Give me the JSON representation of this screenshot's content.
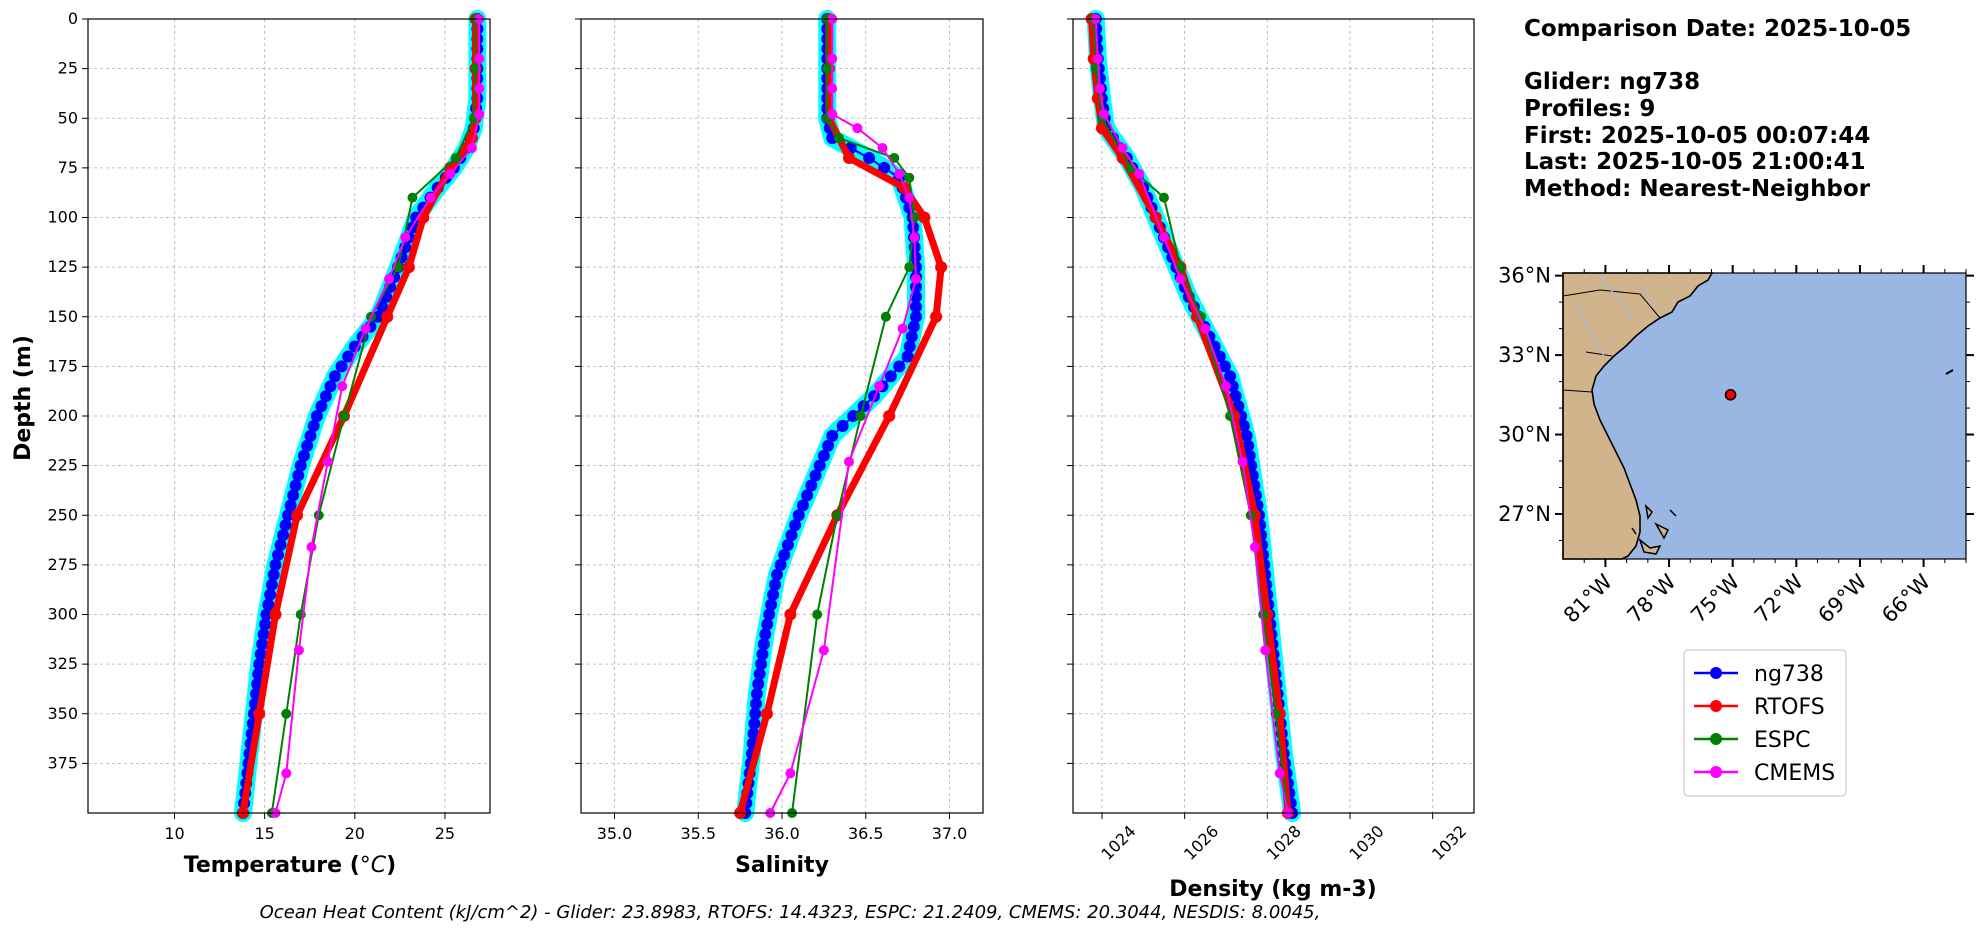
{
  "info": {
    "comparison_date": "Comparison Date: 2025-10-05",
    "glider": "Glider: ng738",
    "profiles": "Profiles: 9",
    "first": "First: 2025-10-05 00:07:44",
    "last": "Last: 2025-10-05 21:00:41",
    "method": "Method: Nearest-Neighbor"
  },
  "footer": "Ocean Heat Content (kJ/cm^2) - Glider: 23.8983,  RTOFS: 14.4323,  ESPC: 21.2409,  CMEMS: 20.3044,  NESDIS: 8.0045,",
  "colors": {
    "ng738": "#0000ff",
    "RTOFS": "#ff0000",
    "ESPC": "#008000",
    "CMEMS": "#ff00ff",
    "cyan": "#00ffff",
    "land": "#d2b48c",
    "ocean": "#9ab6e2"
  },
  "chart_data": [
    {
      "type": "line",
      "ylabel": "Depth (m)",
      "xlabel": "Temperature (°C)",
      "xlim": [
        5.2,
        27.5
      ],
      "ylim": [
        400,
        0
      ],
      "xticks": [
        "10",
        "15",
        "20",
        "25"
      ],
      "xtick_values": [
        10,
        15,
        20,
        25
      ],
      "yticks": [
        "0",
        "25",
        "50",
        "75",
        "100",
        "125",
        "150",
        "175",
        "200",
        "225",
        "250",
        "275",
        "300",
        "325",
        "350",
        "375"
      ],
      "ytick_values": [
        0,
        25,
        50,
        75,
        100,
        125,
        150,
        175,
        200,
        225,
        250,
        275,
        300,
        325,
        350,
        375
      ],
      "grid": true,
      "series": [
        {
          "name": "ng738",
          "x": [
            26.8,
            26.8,
            26.8,
            26.6,
            26.2,
            25.5,
            24.6,
            23.4,
            22.4,
            21.3,
            20.0,
            18.9,
            17.9,
            17.0,
            16.3,
            15.6,
            15.1,
            14.7,
            14.4,
            14.1,
            13.8
          ],
          "y": [
            0,
            20,
            40,
            55,
            65,
            75,
            85,
            100,
            125,
            150,
            165,
            180,
            200,
            225,
            250,
            275,
            300,
            325,
            350,
            375,
            400
          ]
        },
        {
          "name": "RTOFS",
          "x": [
            26.7,
            26.7,
            26.7,
            26.5,
            25.3,
            23.8,
            23.0,
            21.8,
            19.4,
            16.8,
            15.6,
            14.7,
            13.8
          ],
          "y": [
            0,
            25,
            50,
            60,
            75,
            100,
            125,
            150,
            200,
            250,
            300,
            350,
            400
          ]
        },
        {
          "name": "ESPC",
          "x": [
            26.7,
            26.7,
            26.6,
            25.6,
            23.2,
            22.4,
            20.9,
            19.4,
            18.0,
            17.0,
            16.2,
            15.4
          ],
          "y": [
            0,
            25,
            50,
            70,
            90,
            125,
            150,
            200,
            250,
            300,
            350,
            400
          ]
        },
        {
          "name": "CMEMS",
          "x": [
            26.9,
            26.9,
            26.9,
            26.9,
            26.5,
            25.3,
            24.2,
            22.8,
            21.9,
            20.6,
            19.3,
            18.5,
            17.6,
            16.9,
            16.2,
            15.6
          ],
          "y": [
            0,
            20,
            35,
            48,
            65,
            78,
            90,
            110,
            131,
            156,
            185,
            223,
            266,
            318,
            380,
            400
          ]
        }
      ]
    },
    {
      "type": "line",
      "xlabel": "Salinity",
      "xlim": [
        34.8,
        37.2
      ],
      "ylim": [
        400,
        0
      ],
      "xticks": [
        "35.0",
        "35.5",
        "36.0",
        "36.5",
        "37.0"
      ],
      "xtick_values": [
        35.0,
        35.5,
        36.0,
        36.5,
        37.0
      ],
      "grid": true,
      "series": [
        {
          "name": "ng738",
          "x": [
            36.27,
            36.27,
            36.27,
            36.3,
            36.52,
            36.7,
            36.78,
            36.8,
            36.8,
            36.75,
            36.55,
            36.3,
            36.1,
            35.97,
            35.9,
            35.85,
            35.82,
            35.78
          ],
          "y": [
            0,
            25,
            50,
            60,
            70,
            80,
            100,
            125,
            150,
            170,
            190,
            210,
            250,
            280,
            310,
            340,
            370,
            400
          ]
        },
        {
          "name": "RTOFS",
          "x": [
            36.28,
            36.28,
            36.28,
            36.4,
            36.73,
            36.85,
            36.95,
            36.92,
            36.64,
            36.33,
            36.05,
            35.91,
            35.75
          ],
          "y": [
            0,
            25,
            50,
            70,
            85,
            100,
            125,
            150,
            200,
            250,
            300,
            350,
            400
          ]
        },
        {
          "name": "ESPC",
          "x": [
            36.27,
            36.27,
            36.27,
            36.34,
            36.67,
            36.76,
            36.79,
            36.76,
            36.62,
            36.47,
            36.33,
            36.21,
            36.06
          ],
          "y": [
            0,
            25,
            50,
            60,
            70,
            80,
            100,
            125,
            150,
            200,
            250,
            300,
            400
          ]
        },
        {
          "name": "CMEMS",
          "x": [
            36.3,
            36.3,
            36.3,
            36.3,
            36.45,
            36.6,
            36.7,
            36.76,
            36.79,
            36.8,
            36.72,
            36.58,
            36.4,
            36.25,
            36.05,
            35.93
          ],
          "y": [
            0,
            20,
            35,
            48,
            55,
            65,
            78,
            90,
            110,
            131,
            156,
            185,
            223,
            318,
            380,
            400
          ]
        }
      ]
    },
    {
      "type": "line",
      "xlabel": "Density (kg m-3)",
      "xlim": [
        1023.3,
        1033.0
      ],
      "ylim": [
        400,
        0
      ],
      "xticks": [
        "1024",
        "1026",
        "1028",
        "1030",
        "1032"
      ],
      "xtick_values": [
        1024,
        1026,
        1028,
        1030,
        1032
      ],
      "grid": true,
      "series": [
        {
          "name": "ng738",
          "x": [
            1023.85,
            1023.9,
            1024.0,
            1024.1,
            1024.6,
            1025.0,
            1025.5,
            1026.1,
            1026.6,
            1027.1,
            1027.5,
            1027.8,
            1028.0,
            1028.2,
            1028.4,
            1028.6
          ],
          "y": [
            0,
            20,
            40,
            55,
            70,
            85,
            110,
            140,
            160,
            180,
            210,
            250,
            290,
            330,
            370,
            400
          ]
        },
        {
          "name": "RTOFS",
          "x": [
            1023.75,
            1023.8,
            1023.9,
            1024.0,
            1024.5,
            1025.3,
            1025.9,
            1026.3,
            1027.2,
            1027.7,
            1028.0,
            1028.3,
            1028.5
          ],
          "y": [
            0,
            20,
            40,
            55,
            70,
            100,
            125,
            150,
            200,
            250,
            300,
            350,
            400
          ]
        },
        {
          "name": "ESPC",
          "x": [
            1023.8,
            1023.85,
            1024.0,
            1024.7,
            1025.5,
            1025.9,
            1026.4,
            1027.1,
            1027.6,
            1027.9,
            1028.2,
            1028.5
          ],
          "y": [
            0,
            25,
            50,
            75,
            90,
            125,
            150,
            200,
            250,
            300,
            350,
            400
          ]
        },
        {
          "name": "CMEMS",
          "x": [
            1023.85,
            1023.9,
            1023.95,
            1024.05,
            1024.5,
            1024.9,
            1025.5,
            1025.9,
            1026.5,
            1027.0,
            1027.4,
            1027.7,
            1027.95,
            1028.3,
            1028.5
          ],
          "y": [
            0,
            20,
            35,
            48,
            65,
            78,
            110,
            131,
            156,
            185,
            223,
            266,
            318,
            380,
            400
          ]
        }
      ]
    },
    {
      "type": "map",
      "lon_range": [
        -83,
        -64
      ],
      "lat_range": [
        25.3,
        36.1
      ],
      "xticks": [
        "81°W",
        "78°W",
        "75°W",
        "72°W",
        "69°W",
        "66°W"
      ],
      "xtick_values": [
        -81,
        -78,
        -75,
        -72,
        -69,
        -66
      ],
      "yticks": [
        "36°N",
        "33°N",
        "30°N",
        "27°N"
      ],
      "ytick_values": [
        36,
        33,
        30,
        27
      ],
      "glider_position": {
        "lon": -75.1,
        "lat": 31.5
      },
      "legend": [
        "ng738",
        "RTOFS",
        "ESPC",
        "CMEMS"
      ]
    }
  ]
}
